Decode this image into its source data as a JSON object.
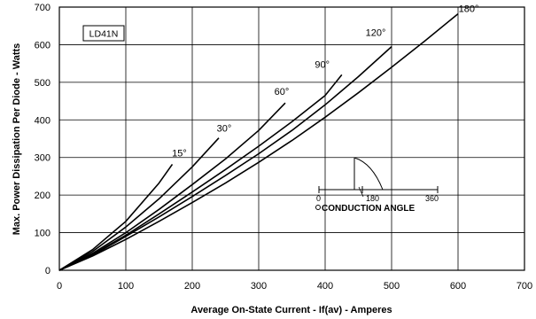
{
  "chart_data": {
    "type": "line",
    "title": "",
    "xlabel": "Average On-State Current - If(av) - Amperes",
    "ylabel": "Max. Power Dissipation Per Diode - Watts",
    "xlim": [
      0,
      700
    ],
    "ylim": [
      0,
      700
    ],
    "xticks": [
      0,
      100,
      200,
      300,
      400,
      500,
      600,
      700
    ],
    "yticks": [
      0,
      100,
      200,
      300,
      400,
      500,
      600,
      700
    ],
    "grid": true,
    "device_label": "LD41N",
    "series": [
      {
        "name": "15°",
        "label": "15°",
        "x": [
          0,
          50,
          100,
          150,
          170
        ],
        "y": [
          0,
          55,
          130,
          232,
          282
        ]
      },
      {
        "name": "30°",
        "label": "30°",
        "x": [
          0,
          50,
          100,
          150,
          200,
          240
        ],
        "y": [
          0,
          50,
          115,
          190,
          275,
          352
        ]
      },
      {
        "name": "60°",
        "label": "60°",
        "x": [
          0,
          50,
          100,
          150,
          200,
          250,
          300,
          340
        ],
        "y": [
          0,
          45,
          100,
          162,
          228,
          296,
          372,
          445
        ]
      },
      {
        "name": "90°",
        "label": "90°",
        "x": [
          0,
          50,
          100,
          150,
          200,
          250,
          300,
          350,
          400,
          425
        ],
        "y": [
          0,
          42,
          93,
          150,
          208,
          268,
          330,
          395,
          465,
          520
        ]
      },
      {
        "name": "120°",
        "label": "120°",
        "x": [
          0,
          50,
          100,
          150,
          200,
          250,
          300,
          350,
          400,
          450,
          500
        ],
        "y": [
          0,
          40,
          90,
          142,
          196,
          252,
          310,
          372,
          440,
          515,
          595
        ]
      },
      {
        "name": "180°",
        "label": "180°",
        "x": [
          0,
          50,
          100,
          150,
          200,
          250,
          300,
          350,
          400,
          450,
          500,
          550,
          600
        ],
        "y": [
          0,
          38,
          82,
          130,
          180,
          232,
          287,
          345,
          407,
          472,
          540,
          610,
          682
        ]
      }
    ],
    "inset": {
      "title": "CONDUCTION ANGLE",
      "scale_labels": [
        "0",
        "180",
        "360"
      ]
    }
  }
}
